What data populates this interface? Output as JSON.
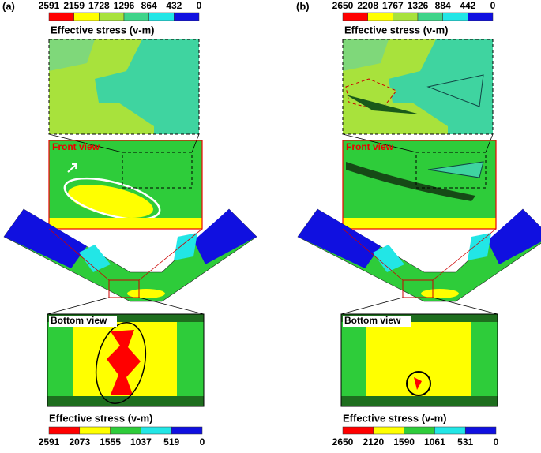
{
  "panels": [
    {
      "label": "(a)",
      "top_colorbar": {
        "title": "Effective stress (v-m)",
        "ticks": [
          2591,
          2159,
          1728,
          1296,
          864,
          432,
          0
        ]
      },
      "front_view": "Front view",
      "bottom_view": "Bottom view",
      "bottom_colorbar": {
        "title": "Effective stress (v-m)",
        "ticks": [
          2591,
          2073,
          1555,
          1037,
          519,
          0
        ]
      }
    },
    {
      "label": "(b)",
      "top_colorbar": {
        "title": "Effective stress (v-m)",
        "ticks": [
          2650,
          2208,
          1767,
          1326,
          884,
          442,
          0
        ]
      },
      "front_view": "Front view",
      "bottom_view": "Bottom view",
      "bottom_colorbar": {
        "title": "Effective stress (v-m)",
        "ticks": [
          2650,
          2120,
          1590,
          1061,
          531,
          0
        ]
      }
    }
  ]
}
